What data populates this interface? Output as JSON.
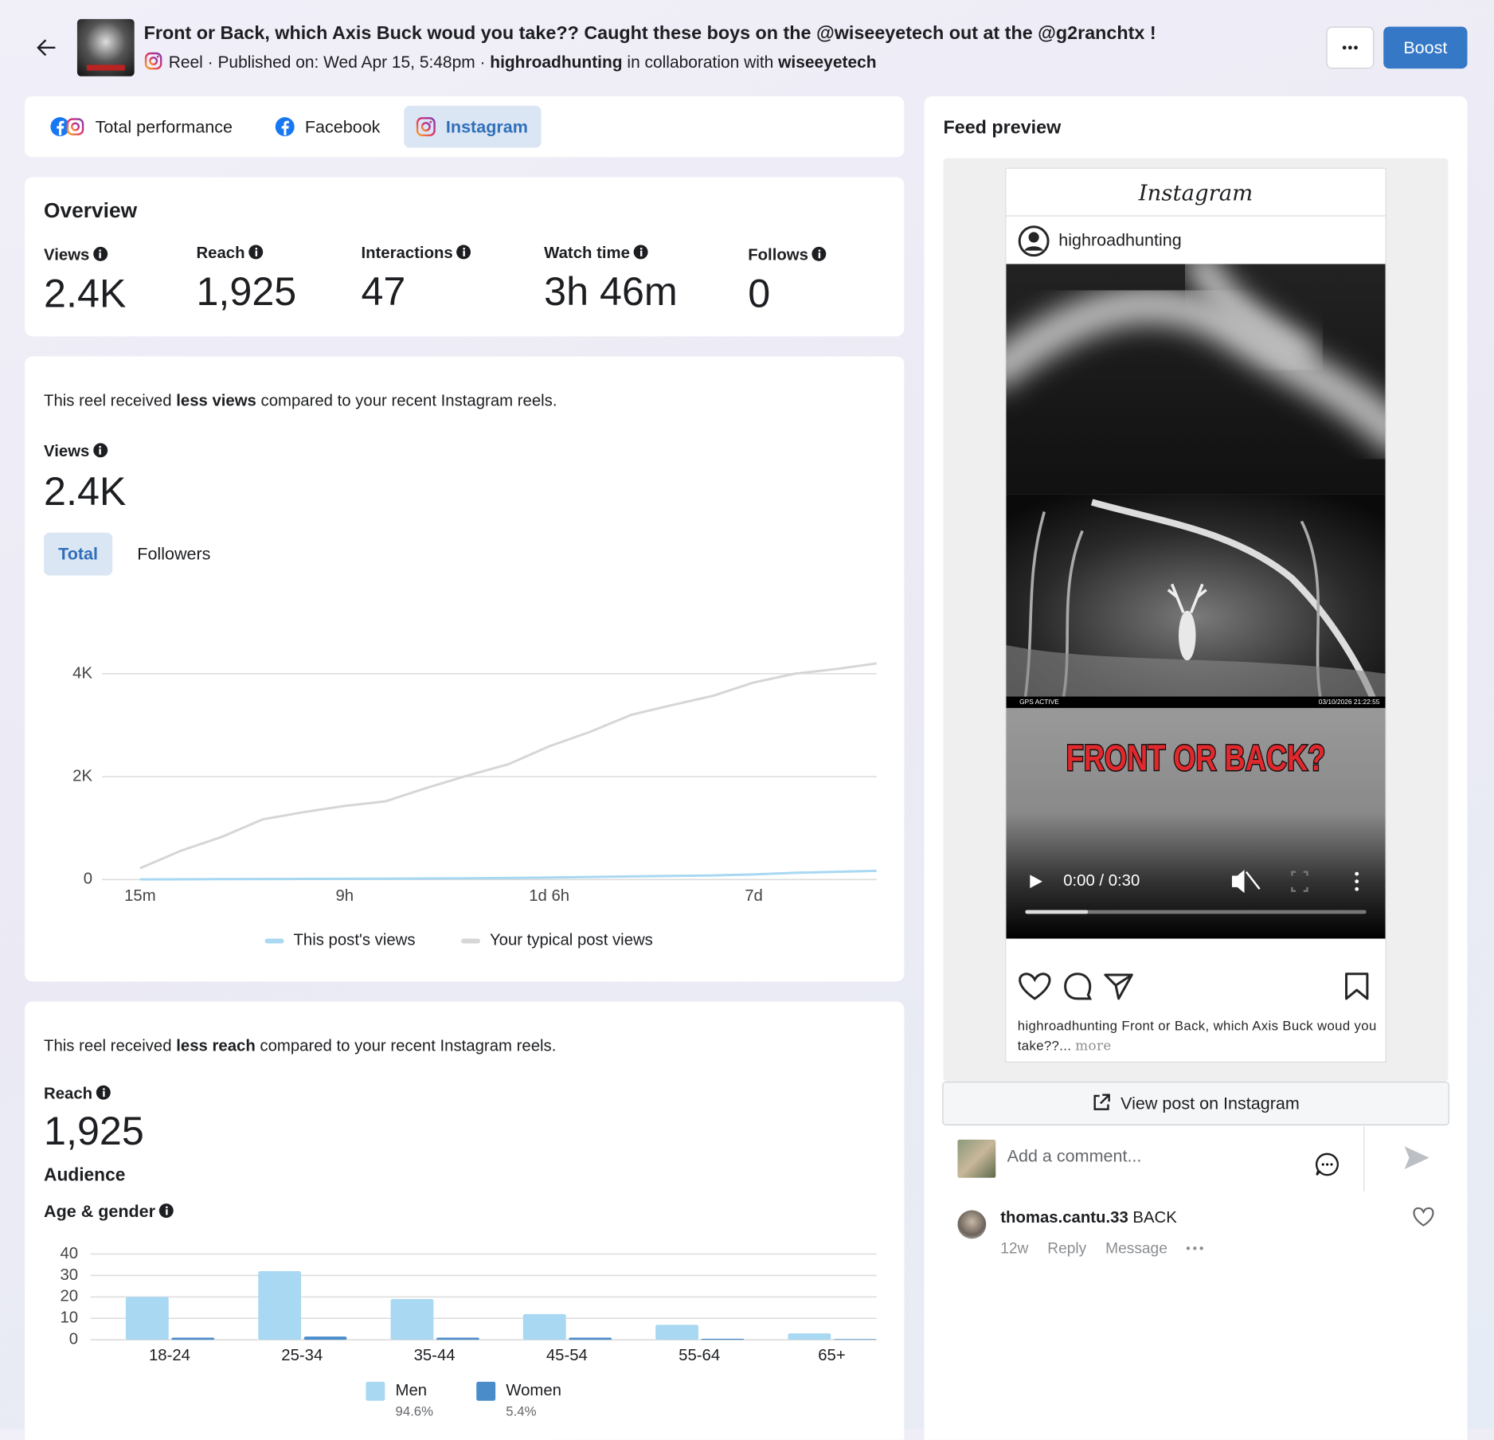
{
  "header": {
    "title": "Front or Back, which Axis Buck woud you take?? Caught these boys on the @wiseeyetech out at the @g2ranchtx !",
    "post_type": "Reel",
    "published": "· Published on: Wed Apr 15, 5:48pm ·",
    "account": "highroadhunting",
    "collab_text": "in collaboration with",
    "collaborator": "wiseeyetech",
    "boost_button": "Boost"
  },
  "tabs": [
    "Total performance",
    "Facebook",
    "Instagram"
  ],
  "overview": {
    "title": "Overview",
    "metrics": [
      {
        "label": "Views",
        "value": "2.4K"
      },
      {
        "label": "Reach",
        "value": "1,925"
      },
      {
        "label": "Interactions",
        "value": "47"
      },
      {
        "label": "Watch time",
        "value": "3h 46m"
      },
      {
        "label": "Follows",
        "value": "0"
      }
    ]
  },
  "views_section": {
    "notice": [
      "This reel received",
      "less views",
      "compared to your recent Instagram reels."
    ],
    "label": "Views",
    "value": "2.4K",
    "toggles": [
      "Total",
      "Followers"
    ]
  },
  "reach_section": {
    "notice": [
      "This reel received",
      "less reach",
      "compared to your recent Instagram reels."
    ],
    "label": "Reach",
    "value": "1,925",
    "audience": "Audience",
    "breakdown": "Age & gender"
  },
  "chart_data": [
    {
      "type": "line",
      "categories": [
        "15m",
        null,
        null,
        null,
        null,
        "9h",
        null,
        null,
        null,
        null,
        "1d 6h",
        null,
        null,
        null,
        null,
        "7d",
        null,
        null,
        null
      ],
      "series": [
        {
          "name": "This post's views",
          "color": "#a9d8f2",
          "values": [
            2,
            5,
            8,
            10,
            12,
            14,
            16,
            20,
            25,
            30,
            40,
            50,
            60,
            70,
            80,
            100,
            130,
            150,
            170
          ]
        },
        {
          "name": "Your typical post views",
          "color": "#d6d6d6",
          "values": [
            220,
            560,
            830,
            1170,
            1310,
            1430,
            1520,
            1780,
            2020,
            2240,
            2590,
            2870,
            3200,
            3390,
            3570,
            3830,
            4000,
            4090,
            4200
          ]
        }
      ],
      "ylim": [
        0,
        4500
      ],
      "yticks": [
        0,
        {
          "value": 2000,
          "label": "2K"
        },
        {
          "value": 4000,
          "label": "4K"
        }
      ],
      "grid": true
    },
    {
      "type": "bar",
      "categories": [
        "18-24",
        "25-34",
        "35-44",
        "45-54",
        "55-64",
        "65+"
      ],
      "series": [
        {
          "name": "Men",
          "color": "#a9d8f2",
          "values": [
            20,
            32,
            19,
            12,
            7,
            3
          ],
          "share_label": "94.6%"
        },
        {
          "name": "Women",
          "color": "#4a8cc9",
          "values": [
            1,
            1.5,
            1,
            1,
            0.5,
            0.3
          ],
          "share_label": "5.4%"
        }
      ],
      "ylim": [
        0,
        40
      ],
      "yticks": [
        0,
        10,
        20,
        30,
        40
      ],
      "grid": true
    }
  ],
  "feed_preview": {
    "title": "Feed preview",
    "app_name": "Instagram",
    "username": "highroadhunting",
    "camera_status": "GPS ACTIVE",
    "camera_timestamp": "03/10/2026 21:22:55",
    "video_overlay": "FRONT OR BACK?",
    "video_time": "0:00 / 0:30",
    "caption_user": "highroadhunting",
    "caption_text": "Front or Back, which Axis Buck woud you take??...",
    "more": "more",
    "view_button": "View post on Instagram",
    "comment_placeholder": "Add a comment...",
    "comments": [
      {
        "user": "thomas.cantu.33",
        "text": "BACK",
        "age": "12w",
        "reply": "Reply",
        "message": "Message"
      }
    ]
  }
}
